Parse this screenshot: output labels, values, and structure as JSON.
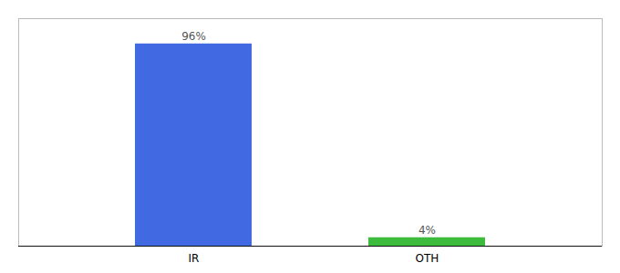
{
  "chart_data": {
    "type": "bar",
    "categories": [
      "IR",
      "OTH"
    ],
    "values": [
      96,
      4
    ],
    "value_labels": [
      "96%",
      "4%"
    ],
    "colors": [
      "#4169e1",
      "#3dbb3d"
    ],
    "ylim": [
      0,
      108
    ],
    "data_labels": true,
    "tick_labels": "x",
    "grid": false
  }
}
